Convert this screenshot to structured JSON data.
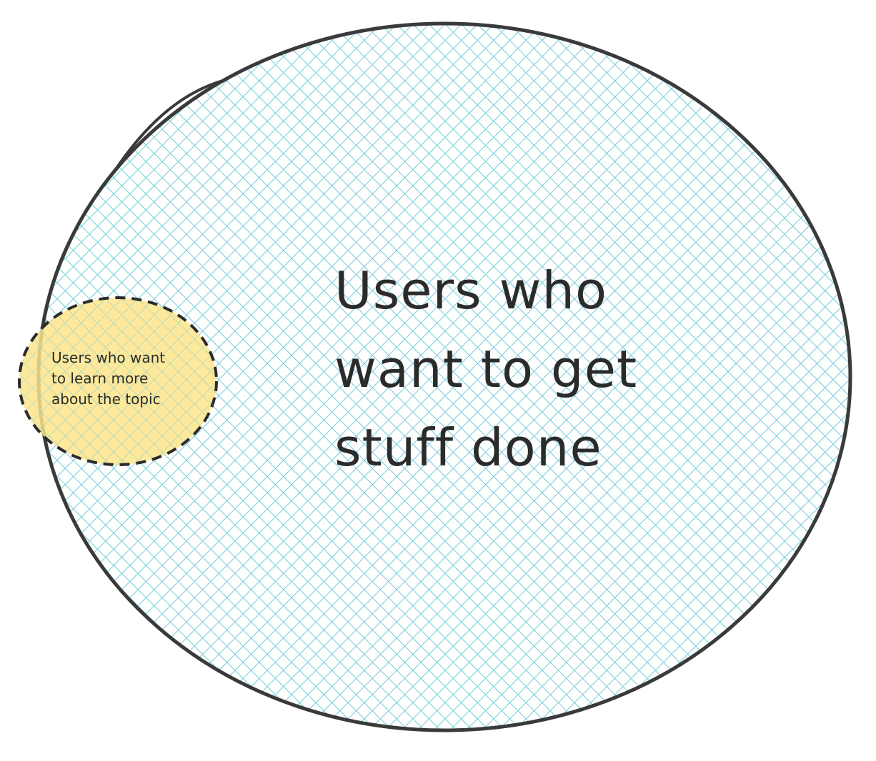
{
  "outer_set": {
    "lines": [
      "Users who",
      "want to get",
      "stuff done"
    ],
    "fill_color": "#7dcfdc",
    "stroke_color": "#3a3a3a",
    "fill_style": "cross-hatch"
  },
  "inner_set": {
    "lines": [
      "Users who want",
      "to learn more",
      "about the topic"
    ],
    "fill_color": "#fde58a",
    "stroke_color": "#2b2b2b",
    "stroke_style": "dashed"
  }
}
